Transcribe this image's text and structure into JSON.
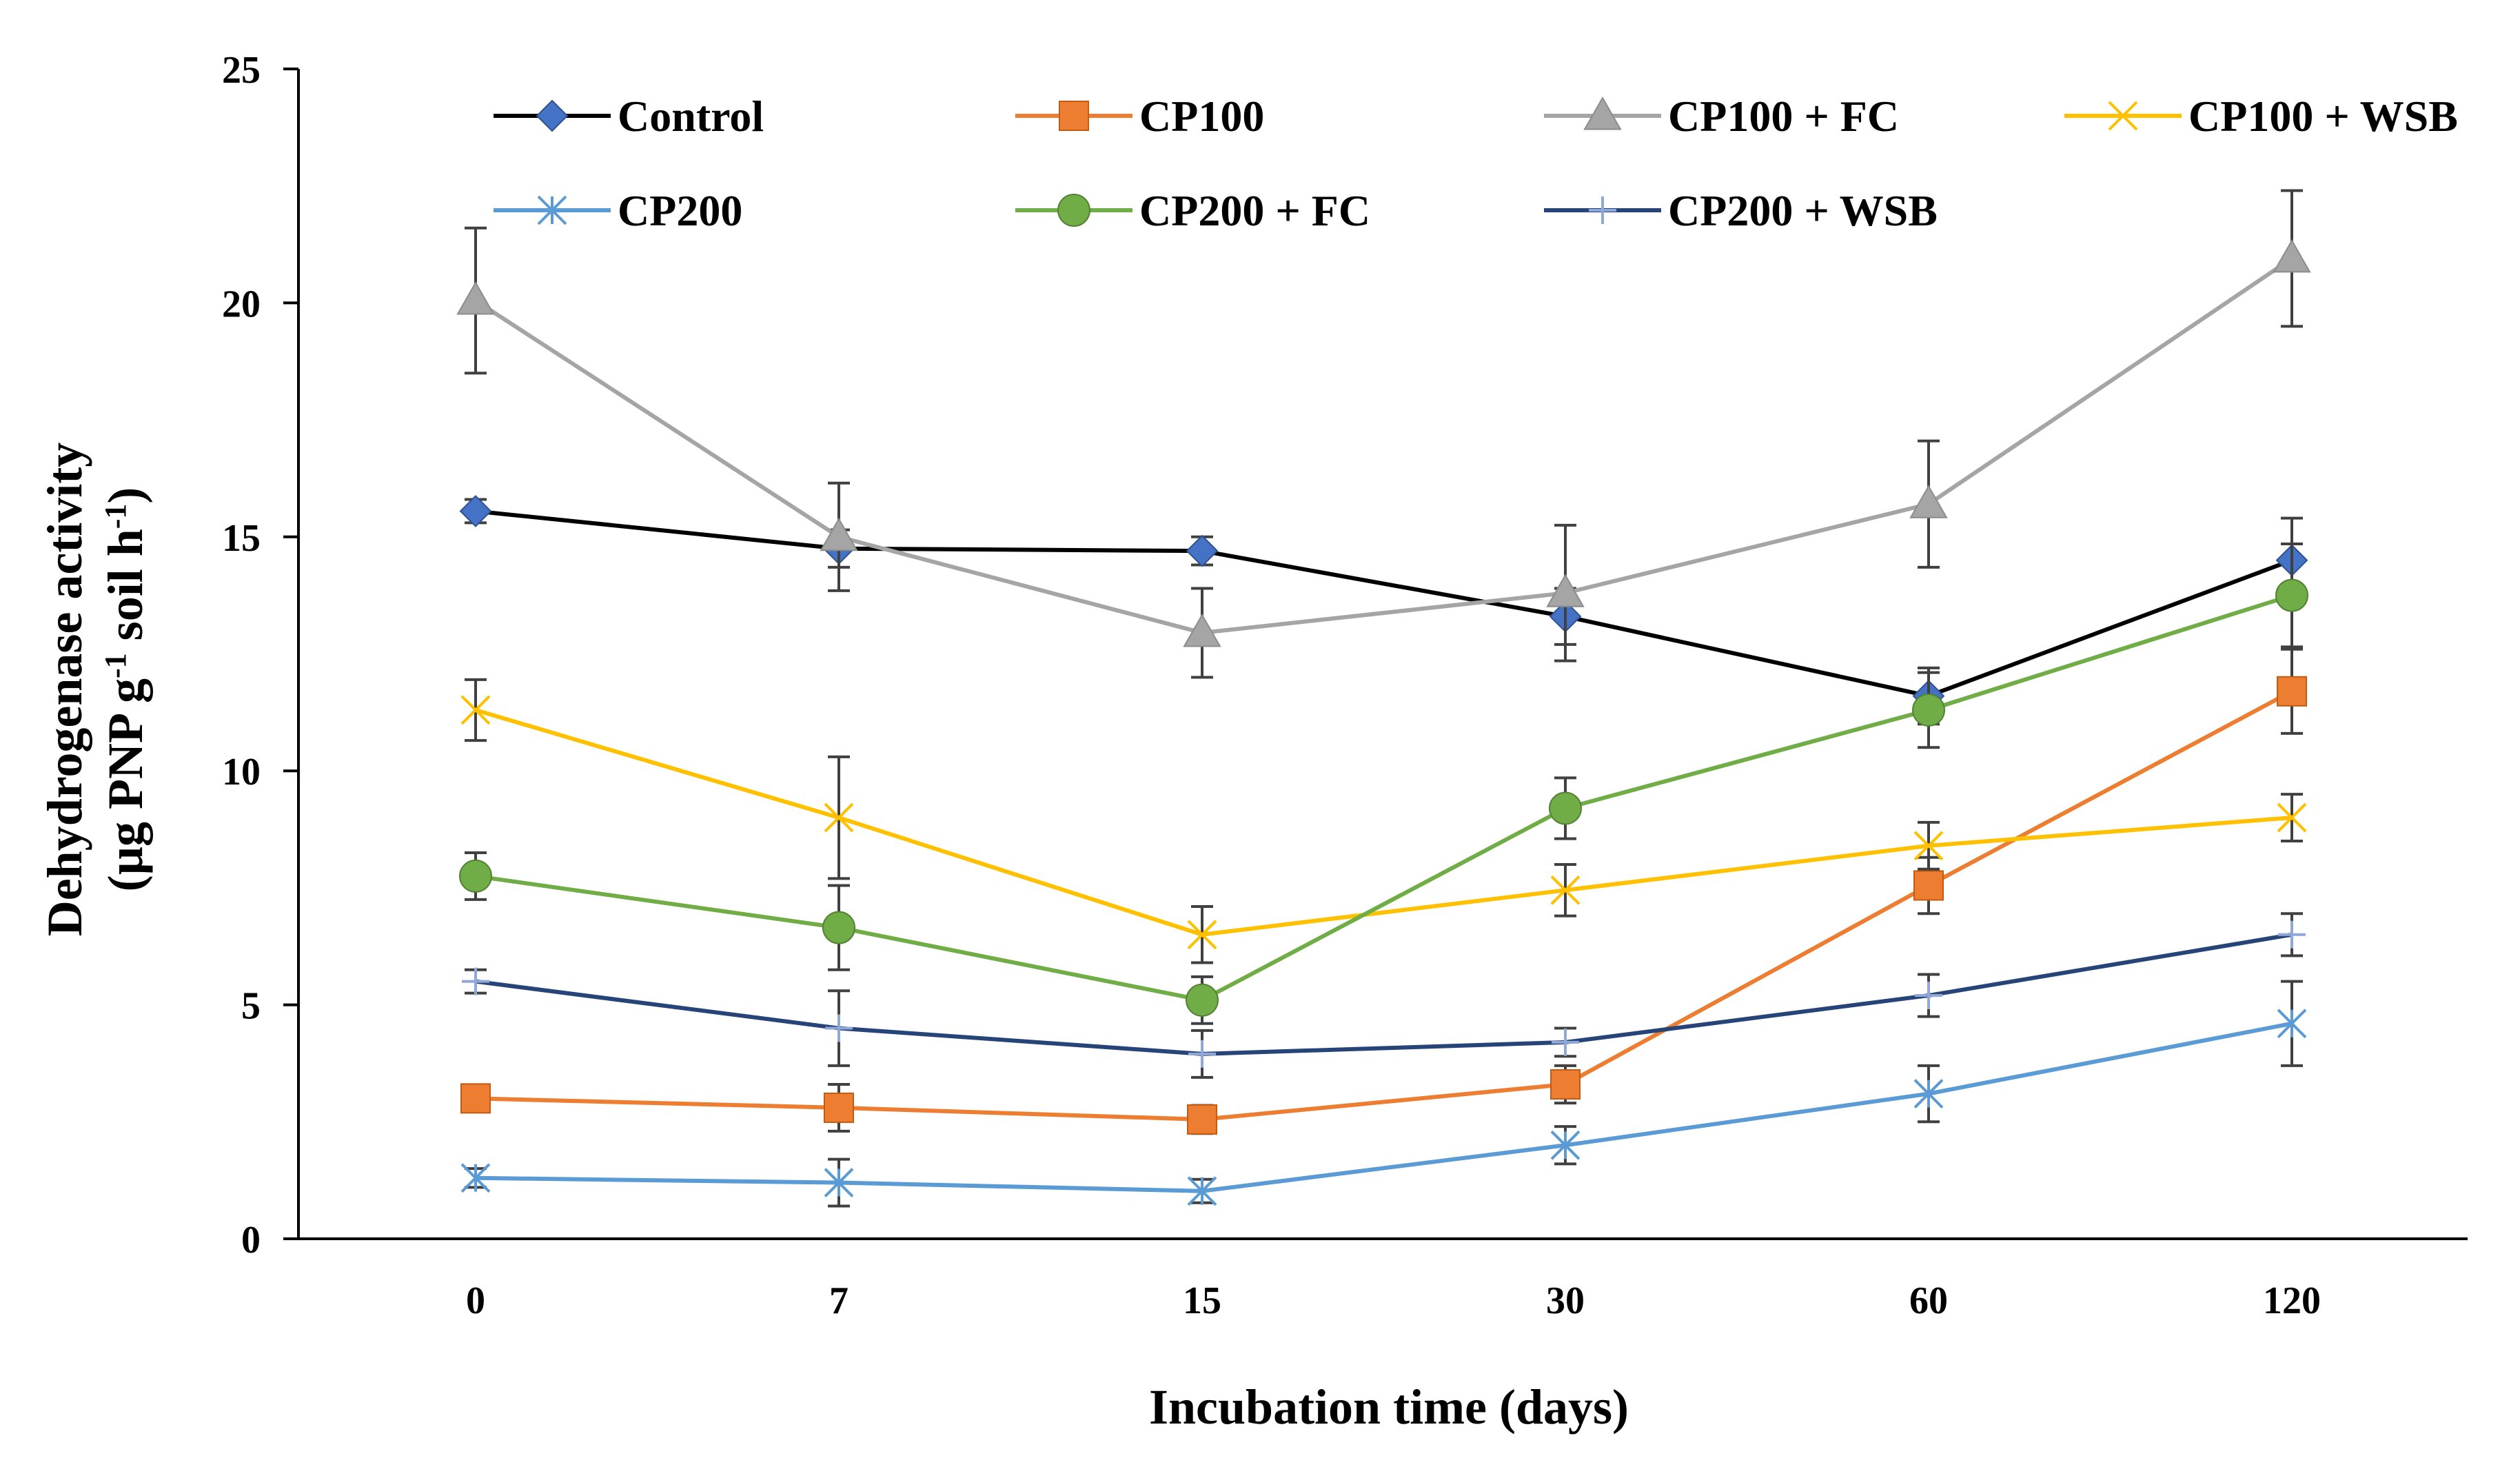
{
  "chart_data": {
    "type": "line",
    "title": "",
    "xlabel": "Incubation time (days)",
    "ylabel_line1": "Dehydrogenase activity",
    "ylabel_line2_parts": [
      "(µg PNP g",
      "-1",
      " soil h",
      "-1",
      ")"
    ],
    "categories": [
      "0",
      "7",
      "15",
      "30",
      "60",
      "120"
    ],
    "ylim": [
      0,
      25
    ],
    "yticks": [
      0,
      5,
      10,
      15,
      20,
      25
    ],
    "legend_position": "top",
    "series": [
      {
        "name": "Control",
        "color": "#000000",
        "marker": "diamond",
        "marker_color": "#4472C4",
        "values": [
          15.55,
          14.75,
          14.7,
          13.3,
          11.6,
          14.5
        ],
        "errors": [
          0.25,
          0.4,
          0.3,
          0.6,
          0.6,
          0.9
        ]
      },
      {
        "name": "CP100",
        "color": "#ED7D31",
        "marker": "square",
        "marker_color": "#ED7D31",
        "values": [
          3.0,
          2.8,
          2.55,
          3.3,
          7.55,
          11.7
        ],
        "errors": [
          0.25,
          0.5,
          0.3,
          0.4,
          0.6,
          0.9
        ]
      },
      {
        "name": "CP100 + FC",
        "color": "#A5A5A5",
        "marker": "triangle",
        "marker_color": "#A5A5A5",
        "values": [
          20.05,
          15.0,
          12.95,
          13.8,
          15.7,
          20.95
        ],
        "errors": [
          1.55,
          1.15,
          0.95,
          1.45,
          1.35,
          1.45
        ]
      },
      {
        "name": "CP100 + WSB",
        "color": "#FFC000",
        "marker": "x",
        "marker_color": "#FFC000",
        "values": [
          11.3,
          9.0,
          6.5,
          7.45,
          8.4,
          9.0
        ],
        "errors": [
          0.65,
          1.3,
          0.6,
          0.55,
          0.5,
          0.5
        ]
      },
      {
        "name": "CP200",
        "color": "#5B9BD5",
        "marker": "asterisk",
        "marker_color": "#5B9BD5",
        "values": [
          1.3,
          1.2,
          1.02,
          2.0,
          3.1,
          4.6
        ],
        "errors": [
          0.2,
          0.5,
          0.25,
          0.4,
          0.6,
          0.9
        ]
      },
      {
        "name": "CP200 + FC",
        "color": "#70AD47",
        "marker": "circle",
        "marker_color": "#70AD47",
        "values": [
          7.75,
          6.65,
          5.1,
          9.2,
          11.3,
          13.75
        ],
        "errors": [
          0.5,
          0.9,
          0.5,
          0.65,
          0.8,
          1.1
        ]
      },
      {
        "name": "CP200 + WSB",
        "color": "#264478",
        "marker": "plus",
        "marker_color": "#8FA8D8",
        "values": [
          5.5,
          4.5,
          3.95,
          4.2,
          5.2,
          6.5
        ],
        "errors": [
          0.25,
          0.8,
          0.5,
          0.3,
          0.45,
          0.45
        ]
      }
    ]
  }
}
